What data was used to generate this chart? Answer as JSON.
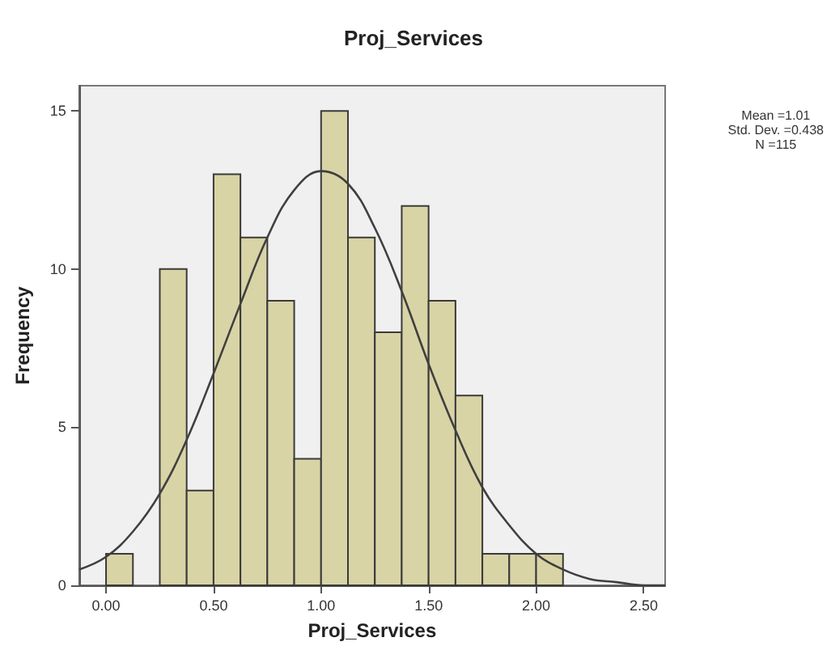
{
  "chart_data": {
    "type": "histogram",
    "title": "Proj_Services",
    "xlabel": "Proj_Services",
    "ylabel": "Frequency",
    "annotations": [
      "Mean =1.01",
      "Std. Dev. =0.438",
      "N =115"
    ],
    "bins": [
      0,
      0.125,
      0.25,
      0.375,
      0.5,
      0.625,
      0.75,
      0.875,
      1,
      1.125,
      1.25,
      1.375,
      1.5,
      1.625,
      1.75,
      1.875,
      2,
      2.125
    ],
    "series": [
      {
        "color": "#d9d4a6",
        "values": [
          1,
          0,
          10,
          3,
          13,
          11,
          9,
          4,
          15,
          11,
          8,
          12,
          9,
          6,
          1,
          1,
          1
        ]
      },
      {
        "type": "line",
        "color": "#404040",
        "x": [
          -0.125,
          0,
          0.125,
          0.25,
          0.375,
          0.5,
          0.625,
          0.75,
          0.875,
          1,
          1.125,
          1.25,
          1.375,
          1.5,
          1.625,
          1.75,
          1.875,
          2,
          2.125,
          2.25,
          2.375,
          2.5,
          2.6
        ],
        "values": [
          0.5,
          0.9,
          1.7,
          2.9,
          4.6,
          6.7,
          8.9,
          11,
          12.5,
          13.1,
          12.7,
          11.3,
          9.3,
          7,
          4.9,
          3.1,
          1.9,
          1,
          0.5,
          0.2,
          0.1,
          0,
          0
        ]
      }
    ],
    "xlim": [
      -0.125,
      2.6
    ],
    "ylim": [
      0,
      15.8
    ],
    "xticks": [
      {
        "value": 0,
        "label": "0.00"
      },
      {
        "value": 0.5,
        "label": "0.50"
      },
      {
        "value": 1,
        "label": "1.00"
      },
      {
        "value": 1.5,
        "label": "1.50"
      },
      {
        "value": 2,
        "label": "2.00"
      },
      {
        "value": 2.5,
        "label": "2.50"
      }
    ],
    "yticks": [
      0,
      5,
      10,
      15
    ],
    "grid": false
  }
}
